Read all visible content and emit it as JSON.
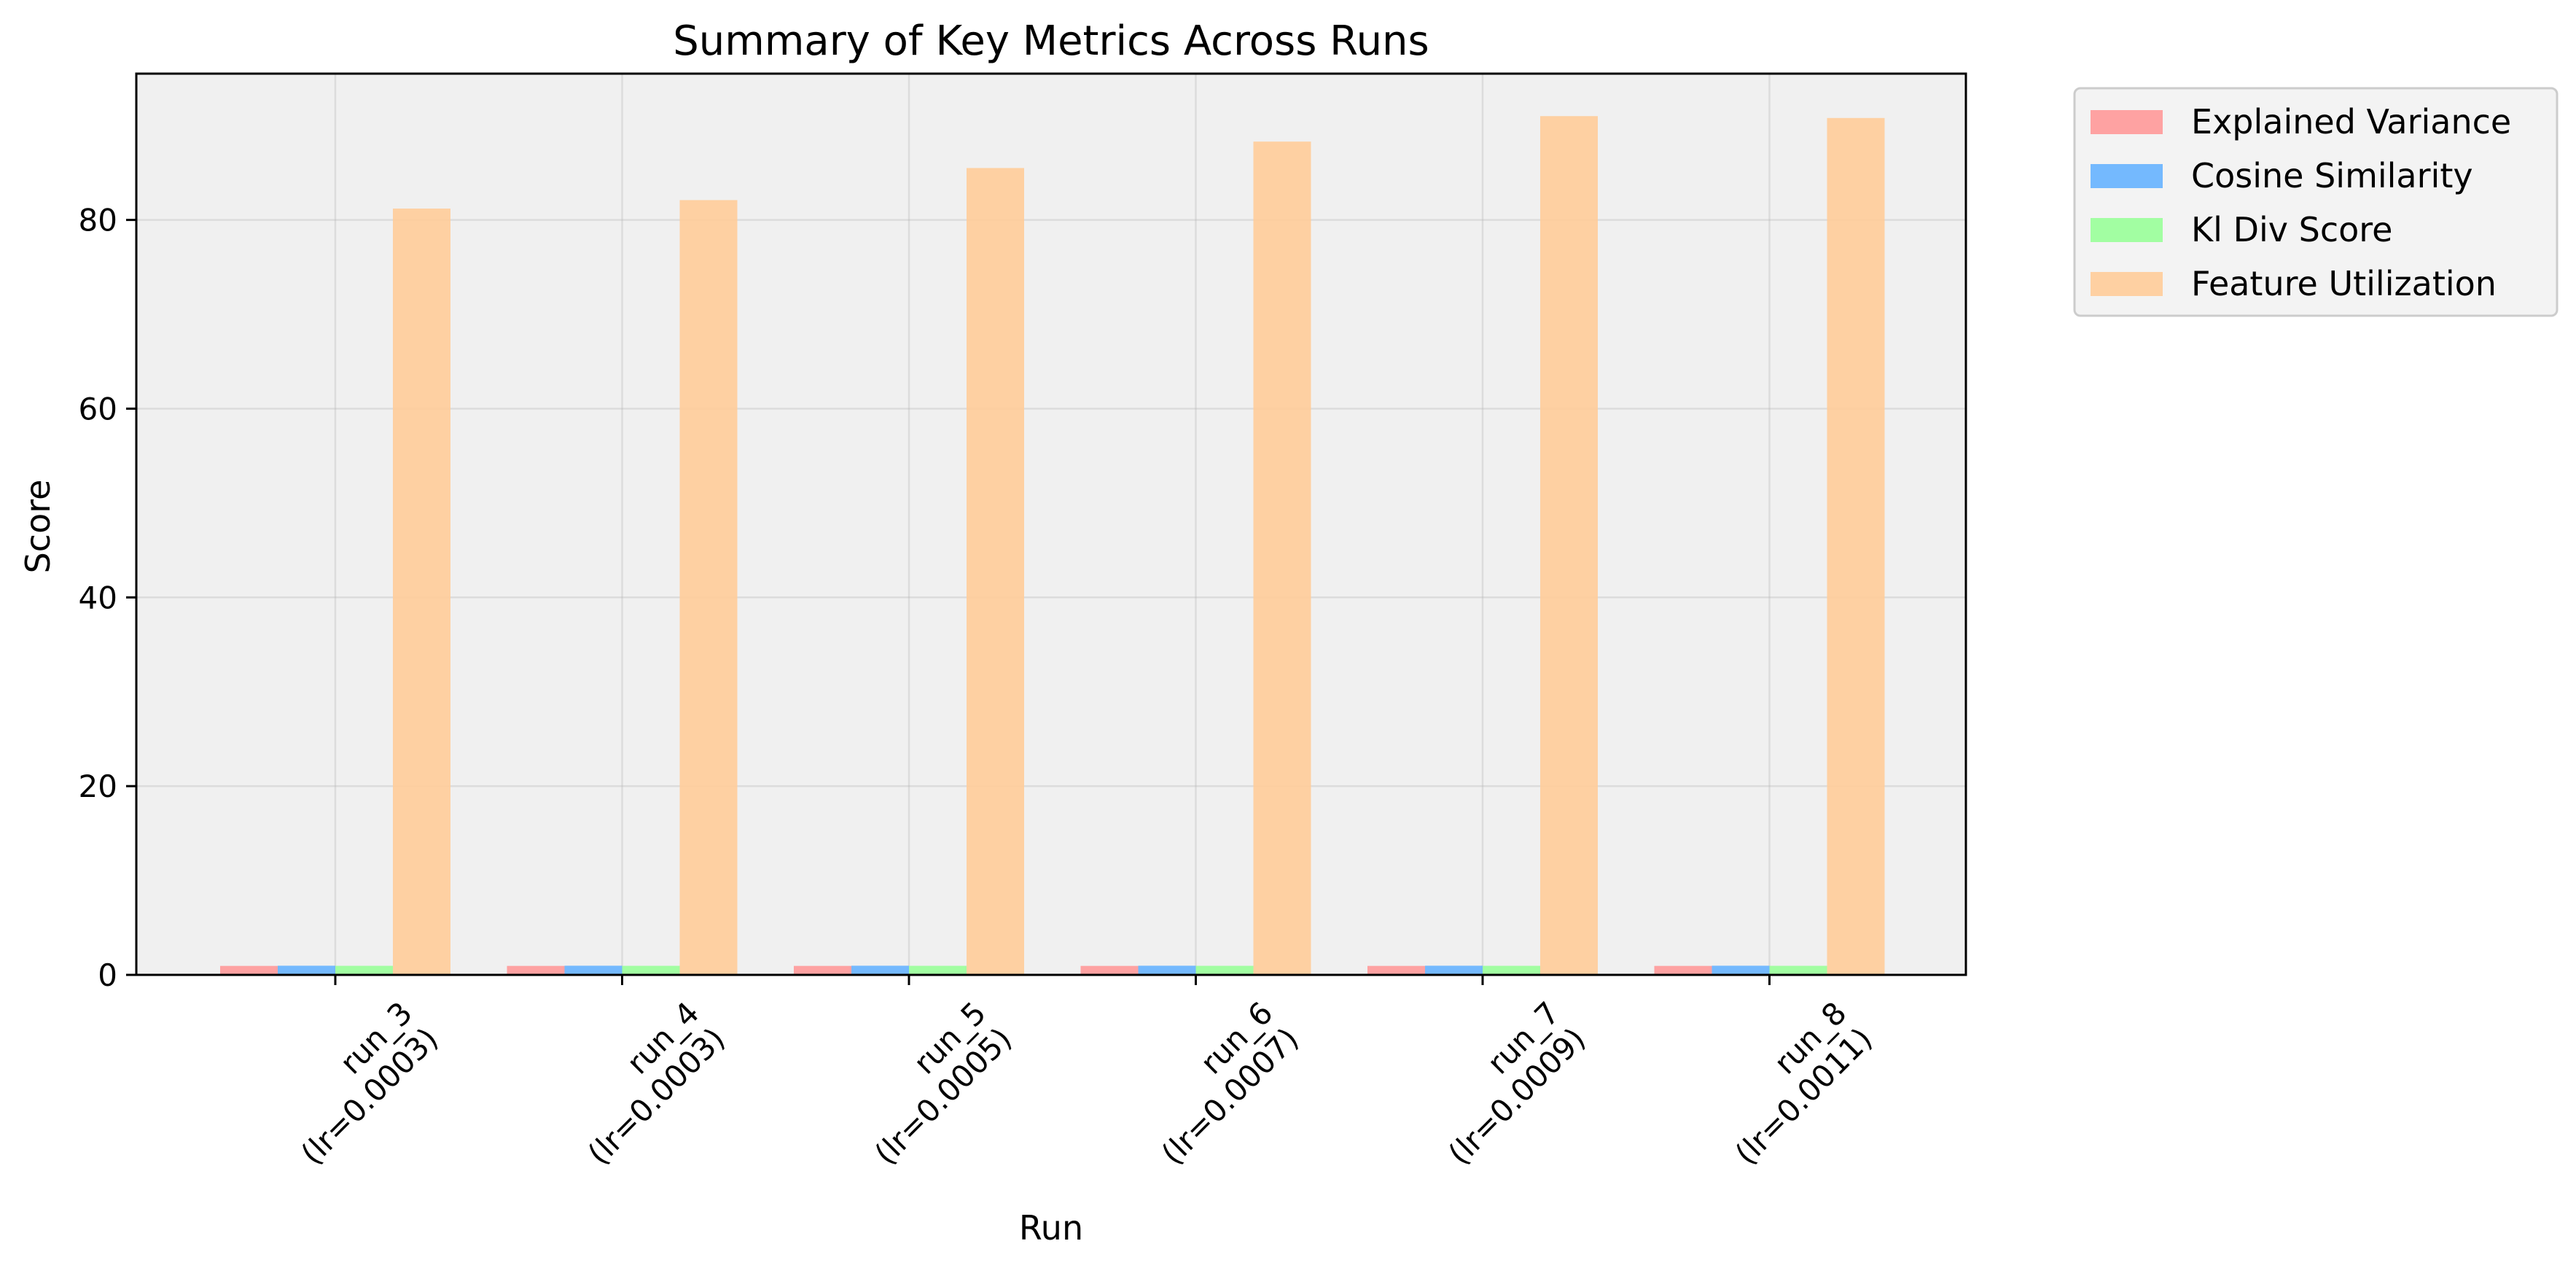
{
  "chart_data": {
    "type": "bar",
    "title": "Summary of Key Metrics Across Runs",
    "xlabel": "Run",
    "ylabel": "Score",
    "ylim": [
      0,
      95.5
    ],
    "yticks": [
      0,
      20,
      40,
      60,
      80
    ],
    "grid": true,
    "legend_position": "upper left, outside right of plot",
    "categories": [
      "run_3\n(lr=0.0003)",
      "run_4\n(lr=0.0003)",
      "run_5\n(lr=0.0005)",
      "run_6\n(lr=0.0007)",
      "run_7\n(lr=0.0009)",
      "run_8\n(lr=0.0011)"
    ],
    "series": [
      {
        "name": "Explained Variance",
        "color": "#ff9999",
        "values": [
          0.95,
          0.95,
          0.95,
          0.95,
          0.95,
          0.95
        ]
      },
      {
        "name": "Cosine Similarity",
        "color": "#66b3ff",
        "values": [
          0.97,
          0.97,
          0.97,
          0.97,
          0.97,
          0.97
        ]
      },
      {
        "name": "Kl Div Score",
        "color": "#99ff99",
        "values": [
          0.96,
          0.96,
          0.96,
          0.96,
          0.96,
          0.96
        ]
      },
      {
        "name": "Feature Utilization",
        "color": "#ffcc99",
        "values": [
          81.2,
          82.1,
          85.5,
          88.3,
          91.0,
          90.8
        ]
      }
    ]
  }
}
